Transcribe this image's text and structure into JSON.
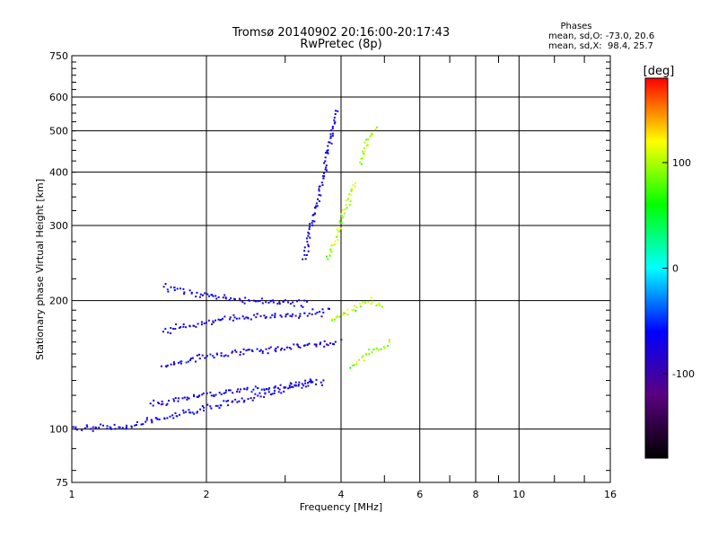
{
  "header": {
    "title_line1": "Tromsø 20140902 20:16:00-20:17:43",
    "title_line2": "RwPretec (8p)",
    "stats_title": "Phases",
    "stats_line1": "mean, sd,O: -73.0, 20.6",
    "stats_line2": "mean, sd,X:  98.4, 25.7"
  },
  "chart_data": {
    "type": "scatter",
    "title": "Tromsø 20140902 20:16:00-20:17:43",
    "subtitle": "RwPretec (8p)",
    "xlabel": "Frequency [MHz]",
    "ylabel": "Stationary phase Virtual Height [km]",
    "xscale": "log",
    "yscale": "log",
    "xlim": [
      1,
      16
    ],
    "ylim": [
      75,
      750
    ],
    "x_ticks": [
      1,
      2,
      4,
      6,
      8,
      10,
      16
    ],
    "x_tick_labels": [
      "1",
      "2",
      "4",
      "6",
      "8",
      "10",
      "16"
    ],
    "x_gridlines": [
      2,
      4,
      6,
      8,
      10
    ],
    "x_minor_ticks": [
      3,
      5,
      7,
      9,
      12,
      14
    ],
    "y_ticks": [
      75,
      100,
      200,
      300,
      400,
      500,
      600,
      750
    ],
    "y_tick_labels": [
      "75",
      "100",
      "200",
      "300",
      "400",
      "500",
      "600",
      "750"
    ],
    "y_gridlines": [
      100,
      200,
      300,
      400,
      500,
      600
    ],
    "grid": true,
    "colorbar": {
      "label": "[deg]",
      "range": [
        -180,
        180
      ],
      "ticks": [
        100,
        0,
        -100
      ],
      "tick_labels": [
        "100",
        "0",
        "-100"
      ],
      "colormap": [
        "#000000",
        "#5a0080",
        "#0000ff",
        "#00ffff",
        "#00ff00",
        "#ffff00",
        "#ff0000"
      ]
    },
    "series": [
      {
        "name": "O",
        "phase_mean": -73.0,
        "phase_sd": 20.6,
        "traces": [
          {
            "f": [
              1.0,
              1.3,
              1.6,
              2.0,
              2.5,
              3.0,
              3.5
            ],
            "h": [
              100,
              101,
              106,
              112,
              118,
              124,
              130
            ]
          },
          {
            "f": [
              1.5,
              1.8,
              2.2,
              2.7,
              3.2,
              3.7
            ],
            "h": [
              114,
              118,
              122,
              125,
              127,
              129
            ]
          },
          {
            "f": [
              1.6,
              2.0,
              2.5,
              3.0,
              3.5,
              4.0
            ],
            "h": [
              140,
              148,
              152,
              155,
              158,
              160
            ]
          },
          {
            "f": [
              1.6,
              2.0,
              2.6,
              3.2,
              3.8
            ],
            "h": [
              170,
              178,
              184,
              186,
              188
            ]
          },
          {
            "f": [
              1.6,
              2.0,
              2.5,
              3.0,
              3.4
            ],
            "h": [
              215,
              205,
              200,
              198,
              196
            ]
          },
          {
            "f": [
              3.3,
              3.5,
              3.7,
              3.9
            ],
            "h": [
              250,
              320,
              420,
              560
            ]
          }
        ]
      },
      {
        "name": "X",
        "phase_mean": 98.4,
        "phase_sd": 25.7,
        "traces": [
          {
            "f": [
              3.8,
              4.2,
              4.6,
              5.0
            ],
            "h": [
              180,
              190,
              200,
              195
            ]
          },
          {
            "f": [
              3.7,
              3.9,
              4.1,
              4.3
            ],
            "h": [
              250,
              280,
              330,
              380
            ]
          },
          {
            "f": [
              4.4,
              4.6,
              4.8
            ],
            "h": [
              420,
              480,
              510
            ]
          },
          {
            "f": [
              4.2,
              4.6,
              5.2
            ],
            "h": [
              140,
              150,
              160
            ]
          }
        ]
      }
    ]
  }
}
